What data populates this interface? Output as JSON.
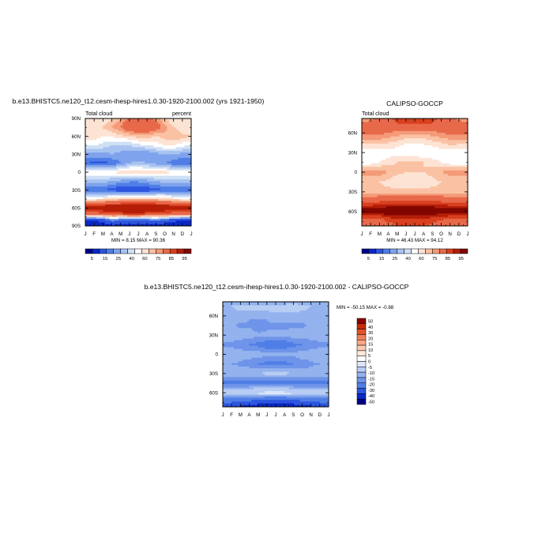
{
  "palettes": {
    "abs": [
      "#00008a",
      "#0a28c8",
      "#2c55e0",
      "#4f7ee6",
      "#7fa3ec",
      "#a8c3f0",
      "#cfe0f6",
      "#ffffff",
      "#fde3d4",
      "#fac1a3",
      "#f49a78",
      "#e8694a",
      "#d9401f",
      "#b41e07",
      "#820600"
    ],
    "diff": [
      "#00008a",
      "#0a28c8",
      "#2c55e0",
      "#4f7ee6",
      "#6f94e9",
      "#93b2ee",
      "#b8cdf3",
      "#dce6f9",
      "#ffffff",
      "#fde8dc",
      "#fbcab2",
      "#f8a786",
      "#f27e5c",
      "#e5502b",
      "#c72a0a",
      "#8a0300"
    ]
  },
  "chart_data": [
    {
      "id": "model",
      "type": "heatmap",
      "title": "b.e13.BHISTC5.ne120_t12.cesm-ihesp-hires1.0.30-1920-2100.002 (yrs 1921-1950)",
      "left_label": "Total cloud",
      "right_label": "percent",
      "stats": "MIN =   8.15 MAX =  90.36",
      "min": 8.15,
      "max": 90.36,
      "x_ticks": [
        "J",
        "F",
        "M",
        "A",
        "M",
        "J",
        "J",
        "A",
        "S",
        "O",
        "N",
        "D",
        "J"
      ],
      "y_ticks": [
        "90N",
        "60N",
        "30N",
        "0",
        "30S",
        "60S",
        "90S"
      ],
      "ylim": [
        -90,
        90
      ],
      "latitudes": [
        90,
        75,
        60,
        45,
        30,
        15,
        0,
        -15,
        -30,
        -45,
        -55,
        -62,
        -70,
        -80,
        -90
      ],
      "values": [
        [
          55,
          55,
          55,
          60,
          65,
          72,
          72,
          72,
          68,
          60,
          55,
          55,
          55
        ],
        [
          55,
          58,
          60,
          65,
          70,
          78,
          80,
          80,
          75,
          68,
          60,
          56,
          55
        ],
        [
          60,
          58,
          55,
          55,
          58,
          60,
          62,
          62,
          60,
          62,
          65,
          62,
          60
        ],
        [
          50,
          50,
          48,
          45,
          45,
          45,
          48,
          50,
          52,
          55,
          55,
          52,
          50
        ],
        [
          38,
          38,
          38,
          40,
          38,
          35,
          35,
          35,
          38,
          40,
          40,
          38,
          38
        ],
        [
          30,
          28,
          28,
          30,
          35,
          40,
          42,
          40,
          38,
          35,
          32,
          30,
          30
        ],
        [
          55,
          55,
          55,
          55,
          58,
          60,
          60,
          58,
          58,
          58,
          55,
          55,
          55
        ],
        [
          42,
          42,
          42,
          40,
          38,
          36,
          36,
          38,
          40,
          42,
          42,
          42,
          42
        ],
        [
          30,
          30,
          30,
          28,
          25,
          25,
          25,
          26,
          28,
          30,
          30,
          30,
          30
        ],
        [
          55,
          55,
          58,
          60,
          62,
          62,
          62,
          62,
          62,
          60,
          58,
          55,
          55
        ],
        [
          82,
          82,
          84,
          86,
          86,
          86,
          86,
          86,
          86,
          86,
          84,
          82,
          82
        ],
        [
          88,
          88,
          88,
          90,
          90,
          90,
          90,
          90,
          90,
          88,
          88,
          88,
          88
        ],
        [
          75,
          75,
          78,
          82,
          82,
          84,
          84,
          82,
          80,
          78,
          76,
          75,
          75
        ],
        [
          20,
          20,
          25,
          35,
          32,
          30,
          30,
          32,
          35,
          30,
          25,
          20,
          20
        ],
        [
          10,
          10,
          12,
          18,
          15,
          15,
          15,
          15,
          15,
          12,
          10,
          10,
          10
        ]
      ],
      "levels": [
        10,
        20,
        30,
        35,
        40,
        45,
        50,
        55,
        60,
        65,
        70,
        80,
        85,
        90
      ],
      "cbar_ticks": [
        "5",
        "15",
        "25",
        "40",
        "60",
        "75",
        "85",
        "95"
      ]
    },
    {
      "id": "obs",
      "type": "heatmap",
      "title": "CALIPSO-GOCCP",
      "left_label": "Total cloud",
      "stats": "MIN =  46.43 MAX =  94.12",
      "min": 46.43,
      "max": 94.12,
      "x_ticks": [
        "J",
        "F",
        "M",
        "A",
        "M",
        "J",
        "J",
        "A",
        "S",
        "O",
        "N",
        "D",
        "J"
      ],
      "y_ticks": [
        "60N",
        "30N",
        "0",
        "30S",
        "60S"
      ],
      "ylim": [
        -82,
        82
      ],
      "latitudes": [
        82,
        75,
        60,
        45,
        30,
        15,
        0,
        -15,
        -30,
        -45,
        -55,
        -62,
        -70,
        -82
      ],
      "values": [
        [
          65,
          68,
          72,
          78,
          82,
          85,
          85,
          85,
          82,
          78,
          72,
          68,
          65
        ],
        [
          70,
          72,
          75,
          78,
          80,
          82,
          82,
          82,
          80,
          78,
          75,
          72,
          70
        ],
        [
          72,
          72,
          72,
          70,
          68,
          66,
          66,
          66,
          68,
          70,
          72,
          72,
          72
        ],
        [
          62,
          62,
          62,
          60,
          58,
          55,
          55,
          56,
          58,
          60,
          62,
          62,
          62
        ],
        [
          50,
          50,
          50,
          52,
          52,
          50,
          50,
          50,
          50,
          52,
          52,
          50,
          50
        ],
        [
          52,
          52,
          55,
          58,
          60,
          62,
          62,
          60,
          58,
          55,
          52,
          52,
          52
        ],
        [
          68,
          68,
          68,
          65,
          62,
          60,
          60,
          60,
          62,
          65,
          68,
          68,
          68
        ],
        [
          60,
          60,
          60,
          58,
          55,
          55,
          55,
          56,
          58,
          60,
          60,
          60,
          60
        ],
        [
          62,
          62,
          62,
          62,
          62,
          62,
          62,
          62,
          62,
          62,
          62,
          62,
          62
        ],
        [
          78,
          78,
          80,
          82,
          82,
          82,
          82,
          82,
          82,
          80,
          78,
          78,
          78
        ],
        [
          90,
          90,
          90,
          92,
          92,
          92,
          92,
          92,
          92,
          90,
          90,
          90,
          90
        ],
        [
          92,
          92,
          92,
          94,
          94,
          94,
          94,
          94,
          94,
          92,
          92,
          92,
          92
        ],
        [
          80,
          80,
          80,
          84,
          86,
          86,
          86,
          86,
          84,
          82,
          80,
          80,
          80
        ],
        [
          72,
          72,
          72,
          76,
          80,
          80,
          80,
          80,
          78,
          74,
          72,
          72,
          72
        ]
      ],
      "levels": [
        10,
        20,
        30,
        35,
        40,
        45,
        50,
        55,
        60,
        65,
        70,
        80,
        85,
        90
      ],
      "cbar_ticks": [
        "5",
        "15",
        "25",
        "40",
        "60",
        "75",
        "85",
        "95"
      ]
    },
    {
      "id": "diff",
      "type": "heatmap",
      "title": "b.e13.BHISTC5.ne120_t12.cesm-ihesp-hires1.0.30-1920-2100.002 - CALIPSO-GOCCP",
      "stats": "MIN = -50.15 MAX =  -0.88",
      "min": -50.15,
      "max": -0.88,
      "x_ticks": [
        "J",
        "F",
        "M",
        "A",
        "M",
        "J",
        "J",
        "A",
        "S",
        "O",
        "N",
        "D",
        "J"
      ],
      "y_ticks": [
        "60N",
        "30N",
        "0",
        "30S",
        "60S"
      ],
      "ylim": [
        -82,
        82
      ],
      "latitudes": [
        82,
        75,
        60,
        45,
        30,
        15,
        0,
        -15,
        -30,
        -45,
        -55,
        -62,
        -70,
        -82
      ],
      "values": [
        [
          -12,
          -12,
          -14,
          -16,
          -16,
          -16,
          -16,
          -16,
          -14,
          -14,
          -12,
          -12,
          -12
        ],
        [
          -10,
          -10,
          -8,
          -6,
          -6,
          -6,
          -6,
          -6,
          -6,
          -8,
          -10,
          -10,
          -10
        ],
        [
          -12,
          -12,
          -12,
          -14,
          -14,
          -14,
          -12,
          -12,
          -12,
          -12,
          -12,
          -12,
          -12
        ],
        [
          -14,
          -14,
          -16,
          -16,
          -18,
          -16,
          -16,
          -16,
          -16,
          -16,
          -14,
          -14,
          -14
        ],
        [
          -12,
          -12,
          -12,
          -12,
          -14,
          -14,
          -14,
          -14,
          -12,
          -12,
          -12,
          -12,
          -12
        ],
        [
          -16,
          -16,
          -18,
          -20,
          -22,
          -24,
          -24,
          -24,
          -22,
          -20,
          -18,
          -16,
          -16
        ],
        [
          -12,
          -12,
          -12,
          -12,
          -12,
          -14,
          -14,
          -14,
          -14,
          -12,
          -12,
          -12,
          -12
        ],
        [
          -15,
          -15,
          -16,
          -18,
          -20,
          -22,
          -22,
          -22,
          -20,
          -18,
          -16,
          -15,
          -15
        ],
        [
          -12,
          -12,
          -12,
          -10,
          -10,
          -8,
          -8,
          -8,
          -10,
          -12,
          -12,
          -12,
          -12
        ],
        [
          -22,
          -22,
          -22,
          -24,
          -24,
          -24,
          -24,
          -24,
          -24,
          -22,
          -22,
          -22,
          -22
        ],
        [
          -10,
          -10,
          -10,
          -8,
          -6,
          -6,
          -6,
          -6,
          -8,
          -10,
          -10,
          -10,
          -10
        ],
        [
          -6,
          -6,
          -6,
          -6,
          -5,
          -4,
          -4,
          -4,
          -5,
          -6,
          -6,
          -6,
          -6
        ],
        [
          -22,
          -22,
          -24,
          -26,
          -28,
          -30,
          -30,
          -30,
          -28,
          -26,
          -24,
          -22,
          -22
        ],
        [
          -40,
          -40,
          -42,
          -44,
          -46,
          -48,
          -48,
          -48,
          -46,
          -44,
          -42,
          -40,
          -40
        ]
      ],
      "levels": [
        -50,
        -40,
        -30,
        -20,
        -15,
        -10,
        -5,
        0,
        5,
        10,
        15,
        20,
        30,
        40,
        50
      ],
      "cbar_ticks": [
        "50",
        "40",
        "30",
        "20",
        "15",
        "10",
        "5",
        "0",
        "-5",
        "-10",
        "-15",
        "-20",
        "-30",
        "-40",
        "-50"
      ]
    }
  ]
}
